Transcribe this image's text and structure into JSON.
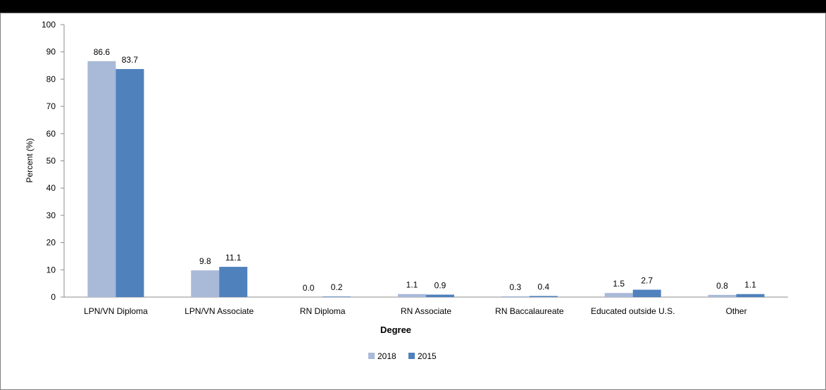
{
  "chart_data": {
    "type": "bar",
    "title": "",
    "xlabel": "Degree",
    "ylabel": "Percent (%)",
    "ylim": [
      0,
      100
    ],
    "yticks": [
      "0",
      "10",
      "20",
      "30",
      "40",
      "50",
      "60",
      "70",
      "80",
      "90",
      "100"
    ],
    "categories": [
      "LPN/VN Diploma",
      "LPN/VN Associate",
      "RN Diploma",
      "RN Associate",
      "RN Baccalaureate",
      "Educated outside U.S.",
      "Other"
    ],
    "series": [
      {
        "name": "2018",
        "color": "#a9b9d8",
        "values": [
          86.6,
          9.8,
          0.0,
          1.1,
          0.3,
          1.5,
          0.8
        ],
        "labels": [
          "86.6",
          "9.8",
          "0.0",
          "1.1",
          "0.3",
          "1.5",
          "0.8"
        ]
      },
      {
        "name": "2015",
        "color": "#4f81bd",
        "values": [
          83.7,
          11.1,
          0.2,
          0.9,
          0.4,
          2.7,
          1.1
        ],
        "labels": [
          "83.7",
          "11.1",
          "0.2",
          "0.9",
          "0.4",
          "2.7",
          "1.1"
        ]
      }
    ],
    "grid": false,
    "legend_position": "bottom"
  }
}
